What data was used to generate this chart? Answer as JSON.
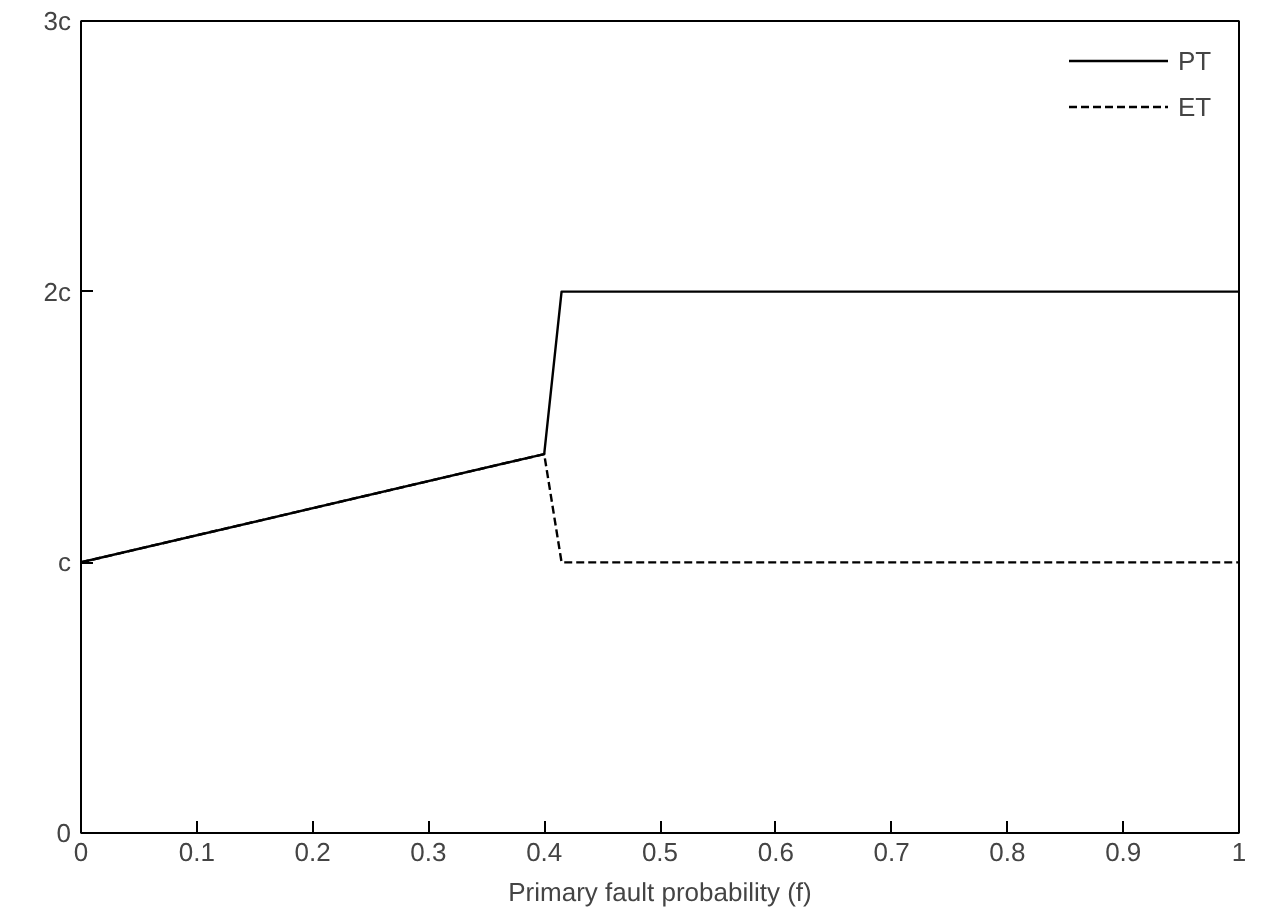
{
  "chart_data": {
    "type": "line",
    "xlabel": "Primary fault probability (f)",
    "xlim": [
      0,
      1
    ],
    "xticks": [
      0,
      0.1,
      0.2,
      0.3,
      0.4,
      0.5,
      0.6,
      0.7,
      0.8,
      0.9,
      1
    ],
    "ylim": [
      0,
      3
    ],
    "yticks": [
      0,
      {
        "value": 1,
        "label": "c"
      },
      {
        "value": 2,
        "label": "2c"
      },
      {
        "value": 3,
        "label": "3c"
      }
    ],
    "series": [
      {
        "name": "PT",
        "color": "#000000",
        "line_style": "solid",
        "x": [
          0,
          0.4,
          0.415,
          1
        ],
        "values": [
          1,
          1.4,
          2,
          2
        ]
      },
      {
        "name": "ET",
        "color": "#000000",
        "line_style": "dashed",
        "x": [
          0,
          0.4,
          0.415,
          1
        ],
        "values": [
          1,
          1.4,
          1,
          1
        ]
      }
    ],
    "legend": "top right",
    "grid": false
  }
}
